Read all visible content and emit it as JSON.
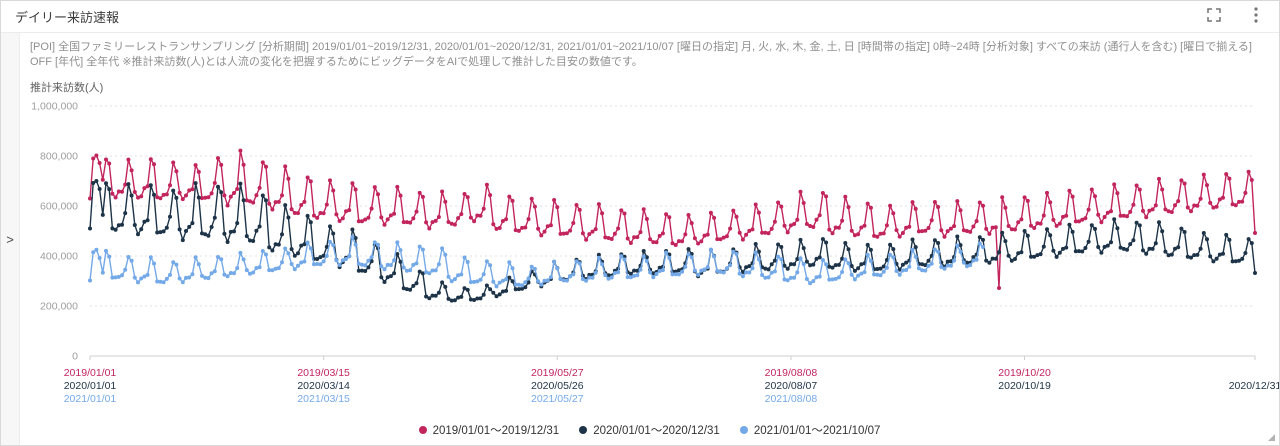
{
  "header": {
    "title": "デイリー来訪速報"
  },
  "description": "[POI] 全国ファミリーレストランサンプリング  [分析期間] 2019/01/01~2019/12/31, 2020/01/01~2020/12/31, 2021/01/01~2021/10/07  [曜日の指定] 月, 火, 水, 木, 金, 土, 日  [時間帯の指定] 0時~24時  [分析対象] すべての来訪 (通行人を含む)  [曜日で揃える] OFF  [年代] 全年代  ※推計来訪数(人)とは人流の変化を把握するためにビッグデータをAIで処理して推計した目安の数値です。",
  "sidebar": {
    "collapse_glyph": ">"
  },
  "chart_data": {
    "type": "line",
    "title": "",
    "xlabel": "",
    "ylabel": "推計来訪数(人)",
    "ylim": [
      0,
      1000000
    ],
    "yticks": [
      0,
      200000,
      400000,
      600000,
      800000,
      1000000
    ],
    "grid": "dotted horizontal",
    "legend_position": "bottom center",
    "days_span": 365,
    "week_pattern": [
      0.12,
      0.02,
      0.1,
      0.2,
      0.34,
      1.0,
      0.8
    ],
    "x_groups": [
      {
        "day": 0,
        "labels": [
          {
            "row": 0,
            "text": "2019/01/01"
          },
          {
            "row": 1,
            "text": "2020/01/01"
          },
          {
            "row": 2,
            "text": "2021/01/01"
          }
        ]
      },
      {
        "day": 73,
        "labels": [
          {
            "row": 0,
            "text": "2019/03/15"
          },
          {
            "row": 1,
            "text": "2020/03/14"
          },
          {
            "row": 2,
            "text": "2021/03/15"
          }
        ]
      },
      {
        "day": 146,
        "labels": [
          {
            "row": 0,
            "text": "2019/05/27"
          },
          {
            "row": 1,
            "text": "2020/05/26"
          },
          {
            "row": 2,
            "text": "2021/05/27"
          }
        ]
      },
      {
        "day": 219,
        "labels": [
          {
            "row": 0,
            "text": "2019/08/08"
          },
          {
            "row": 1,
            "text": "2020/08/07"
          },
          {
            "row": 2,
            "text": "2021/08/08"
          }
        ]
      },
      {
        "day": 292,
        "labels": [
          {
            "row": 0,
            "text": "2019/10/20"
          },
          {
            "row": 1,
            "text": "2020/10/19"
          }
        ]
      },
      {
        "day": 364,
        "labels": [
          {
            "row": 1,
            "text": "2020/12/31"
          }
        ]
      }
    ],
    "series": [
      {
        "name": "2019/01/01〜2019/12/31",
        "color": "#c2255c",
        "days": 365,
        "weeks_unit": "thousands, [weekday_low, weekend_high] per week (estimated from chart)",
        "weeks": [
          [
            620,
            795
          ],
          [
            635,
            780
          ],
          [
            630,
            790
          ],
          [
            625,
            775
          ],
          [
            630,
            760
          ],
          [
            620,
            800
          ],
          [
            610,
            810
          ],
          [
            605,
            785
          ],
          [
            590,
            750
          ],
          [
            565,
            720
          ],
          [
            550,
            700
          ],
          [
            540,
            690
          ],
          [
            530,
            680
          ],
          [
            530,
            670
          ],
          [
            525,
            660
          ],
          [
            515,
            650
          ],
          [
            520,
            655
          ],
          [
            540,
            680
          ],
          [
            505,
            640
          ],
          [
            495,
            630
          ],
          [
            485,
            620
          ],
          [
            480,
            610
          ],
          [
            470,
            600
          ],
          [
            462,
            590
          ],
          [
            455,
            580
          ],
          [
            450,
            572
          ],
          [
            442,
            562
          ],
          [
            450,
            572
          ],
          [
            460,
            585
          ],
          [
            470,
            600
          ],
          [
            482,
            622
          ],
          [
            500,
            648
          ],
          [
            510,
            660
          ],
          [
            492,
            632
          ],
          [
            480,
            612
          ],
          [
            472,
            602
          ],
          [
            480,
            612
          ],
          [
            490,
            622
          ],
          [
            482,
            612
          ],
          [
            490,
            622
          ],
          [
            492,
            628
          ],
          [
            500,
            640
          ],
          [
            510,
            650
          ],
          [
            520,
            660
          ],
          [
            530,
            670
          ],
          [
            540,
            680
          ],
          [
            550,
            690
          ],
          [
            560,
            700
          ],
          [
            570,
            710
          ],
          [
            580,
            720
          ],
          [
            590,
            730
          ],
          [
            598,
            738
          ],
          [
            520,
            700
          ]
        ],
        "overrides": {
          "0": 630,
          "1": 790,
          "2": 802,
          "3": 772,
          "4": 705,
          "284": 272,
          "364": 492
        }
      },
      {
        "name": "2020/01/01〜2020/12/31",
        "color": "#1d3347",
        "days": 365,
        "weeks_unit": "thousands, [weekday_low, weekend_high] per week (estimated from chart)",
        "weeks": [
          [
            505,
            695
          ],
          [
            498,
            688
          ],
          [
            490,
            678
          ],
          [
            482,
            670
          ],
          [
            472,
            680
          ],
          [
            470,
            690
          ],
          [
            462,
            678
          ],
          [
            452,
            650
          ],
          [
            420,
            600
          ],
          [
            400,
            560
          ],
          [
            380,
            522
          ],
          [
            360,
            500
          ],
          [
            332,
            452
          ],
          [
            300,
            402
          ],
          [
            262,
            342
          ],
          [
            232,
            292
          ],
          [
            220,
            272
          ],
          [
            222,
            282
          ],
          [
            240,
            312
          ],
          [
            262,
            342
          ],
          [
            282,
            372
          ],
          [
            300,
            390
          ],
          [
            310,
            400
          ],
          [
            318,
            410
          ],
          [
            328,
            418
          ],
          [
            330,
            420
          ],
          [
            332,
            430
          ],
          [
            322,
            420
          ],
          [
            330,
            432
          ],
          [
            340,
            442
          ],
          [
            342,
            452
          ],
          [
            350,
            460
          ],
          [
            360,
            470
          ],
          [
            350,
            452
          ],
          [
            342,
            442
          ],
          [
            340,
            450
          ],
          [
            350,
            460
          ],
          [
            358,
            470
          ],
          [
            360,
            472
          ],
          [
            368,
            480
          ],
          [
            372,
            490
          ],
          [
            380,
            500
          ],
          [
            390,
            510
          ],
          [
            400,
            520
          ],
          [
            410,
            530
          ],
          [
            418,
            540
          ],
          [
            420,
            540
          ],
          [
            410,
            530
          ],
          [
            400,
            512
          ],
          [
            390,
            492
          ],
          [
            380,
            482
          ],
          [
            372,
            472
          ],
          [
            335,
            455
          ]
        ],
        "overrides": {
          "0": 510,
          "1": 692,
          "2": 700,
          "3": 668,
          "364": 332
        }
      },
      {
        "name": "2021/01/01〜2021/10/07",
        "color": "#74a9e8",
        "days": 280,
        "weeks_unit": "thousands, [weekday_low, weekend_high] per week (estimated from chart)",
        "weeks": [
          [
            300,
            418
          ],
          [
            308,
            400
          ],
          [
            298,
            390
          ],
          [
            290,
            380
          ],
          [
            298,
            390
          ],
          [
            308,
            400
          ],
          [
            318,
            410
          ],
          [
            328,
            420
          ],
          [
            338,
            432
          ],
          [
            350,
            450
          ],
          [
            360,
            462
          ],
          [
            368,
            470
          ],
          [
            358,
            460
          ],
          [
            348,
            450
          ],
          [
            338,
            440
          ],
          [
            328,
            430
          ],
          [
            300,
            392
          ],
          [
            290,
            382
          ],
          [
            282,
            370
          ],
          [
            278,
            362
          ],
          [
            288,
            372
          ],
          [
            298,
            382
          ],
          [
            300,
            390
          ],
          [
            308,
            400
          ],
          [
            310,
            400
          ],
          [
            318,
            410
          ],
          [
            320,
            412
          ],
          [
            328,
            420
          ],
          [
            330,
            422
          ],
          [
            320,
            410
          ],
          [
            310,
            400
          ],
          [
            300,
            390
          ],
          [
            292,
            382
          ],
          [
            300,
            390
          ],
          [
            310,
            400
          ],
          [
            318,
            410
          ],
          [
            328,
            420
          ],
          [
            338,
            430
          ],
          [
            348,
            440
          ],
          [
            358,
            450
          ]
        ],
        "overrides": {
          "0": 302,
          "1": 415,
          "2": 425,
          "3": 392
        }
      }
    ]
  }
}
